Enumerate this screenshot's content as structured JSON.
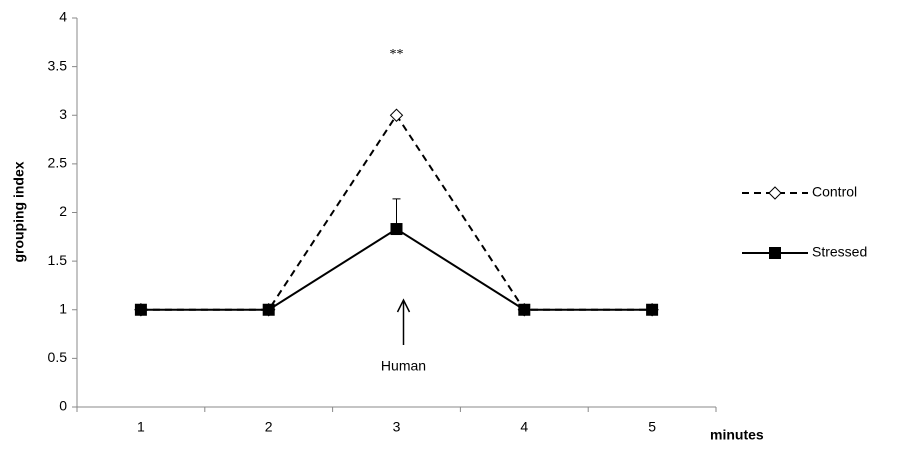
{
  "chart_data": {
    "type": "line",
    "y_label": "grouping index",
    "x_label": "minutes",
    "categories": [
      "1",
      "2",
      "3",
      "4",
      "5"
    ],
    "series": [
      {
        "name": "Control",
        "color": "#000000",
        "line_style": "dashed",
        "marker": "open-diamond",
        "values": [
          1,
          1,
          3,
          1,
          1
        ]
      },
      {
        "name": "Stressed",
        "color": "#000000",
        "line_style": "solid",
        "marker": "filled-square",
        "values": [
          1,
          1,
          1.83,
          1,
          1
        ],
        "errors": [
          null,
          null,
          0.31,
          null,
          null
        ]
      }
    ],
    "ylim": [
      0,
      4
    ],
    "yticks": [
      0,
      0.5,
      1,
      1.5,
      2,
      2.5,
      3,
      3.5,
      4
    ],
    "grid": false,
    "legend": "right",
    "annotations": [
      {
        "text": "**"
      },
      {
        "text": "Human"
      }
    ]
  }
}
